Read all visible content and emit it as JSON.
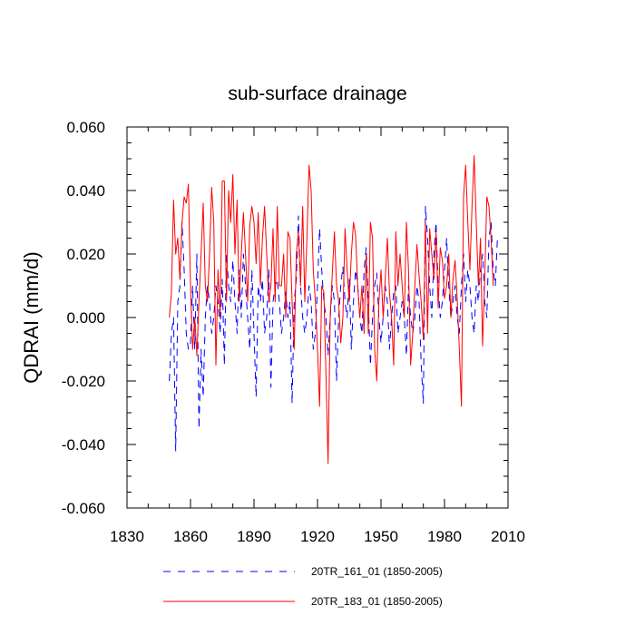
{
  "chart_data": {
    "type": "line",
    "title": "sub-surface drainage",
    "xlabel": "",
    "ylabel": "QDRAI  (mm/d)",
    "xlim": [
      1830,
      2010
    ],
    "ylim": [
      -0.06,
      0.06
    ],
    "x_ticks": [
      1830,
      1860,
      1890,
      1920,
      1950,
      1980,
      2010
    ],
    "x_tick_labels": [
      "1830",
      "1860",
      "1890",
      "1920",
      "1950",
      "1980",
      "2010"
    ],
    "y_ticks": [
      -0.06,
      -0.04,
      -0.02,
      0.0,
      0.02,
      0.04,
      0.06
    ],
    "y_tick_labels": [
      "-0.060",
      "-0.040",
      "-0.020",
      "0.000",
      "0.020",
      "0.040",
      "0.060"
    ],
    "legend_position": "bottom",
    "grid": false,
    "series": [
      {
        "name": "20TR_161_01 (1850-2005)",
        "color": "#0000ff",
        "dash": "dashed",
        "x_start": 1850,
        "values": [
          -0.02,
          -0.005,
          0.0,
          -0.042,
          0.005,
          0.01,
          0.03,
          0.015,
          -0.005,
          -0.01,
          -0.008,
          0.01,
          -0.01,
          0.02,
          -0.035,
          -0.01,
          -0.025,
          0.0,
          0.01,
          0.005,
          -0.005,
          0.0,
          0.01,
          0.005,
          -0.005,
          0.012,
          -0.015,
          0.02,
          0.01,
          0.005,
          0.018,
          0.005,
          -0.005,
          0.015,
          0.0,
          0.02,
          0.01,
          0.0,
          -0.01,
          0.015,
          -0.005,
          -0.025,
          0.01,
          0.005,
          0.012,
          -0.005,
          0.0,
          0.015,
          -0.022,
          0.005,
          0.01,
          0.012,
          0.005,
          -0.005,
          0.0,
          0.008,
          0.0,
          0.005,
          -0.027,
          0.005,
          0.012,
          0.032,
          0.01,
          0.0,
          -0.005,
          0.0,
          0.01,
          0.005,
          -0.01,
          -0.005,
          0.01,
          0.028,
          0.015,
          0.005,
          0.0,
          -0.012,
          0.0,
          0.01,
          0.005,
          -0.02,
          0.0,
          0.01,
          0.016,
          0.005,
          0.0,
          0.012,
          -0.01,
          0.005,
          0.015,
          0.01,
          0.0,
          -0.005,
          0.015,
          0.022,
          0.005,
          -0.015,
          0.0,
          0.01,
          0.014,
          0.0,
          -0.008,
          0.0,
          0.01,
          0.005,
          -0.01,
          0.0,
          0.008,
          0.01,
          -0.005,
          0.0,
          0.005,
          0.0,
          -0.012,
          0.01,
          0.0,
          -0.005,
          0.0,
          0.01,
          0.005,
          -0.015,
          -0.027,
          0.035,
          0.025,
          0.01,
          0.0,
          0.02,
          0.03,
          0.01,
          0.0,
          0.005,
          0.015,
          0.025,
          0.01,
          0.0,
          0.005,
          0.01,
          0.0,
          -0.005,
          0.01,
          0.02,
          0.005,
          0.015,
          0.01,
          0.0,
          -0.005,
          0.01,
          0.005,
          0.015,
          0.02,
          0.005,
          0.0,
          0.025,
          0.03,
          0.015,
          0.01,
          0.025
        ]
      },
      {
        "name": "20TR_183_01 (1850-2005)",
        "color": "#ff0000",
        "dash": "solid",
        "x_start": 1850,
        "values": [
          0.0,
          0.008,
          0.037,
          0.02,
          0.025,
          0.012,
          0.03,
          0.038,
          0.036,
          0.042,
          0.01,
          -0.01,
          0.0,
          -0.012,
          0.005,
          0.02,
          0.036,
          0.01,
          0.005,
          0.02,
          0.041,
          0.03,
          -0.015,
          0.015,
          0.0,
          0.043,
          0.043,
          0.005,
          0.04,
          0.03,
          0.045,
          0.02,
          0.037,
          0.005,
          0.02,
          0.033,
          0.02,
          0.005,
          0.029,
          0.035,
          0.03,
          0.017,
          0.033,
          0.01,
          0.025,
          0.035,
          0.02,
          0.005,
          0.01,
          0.028,
          0.005,
          0.035,
          0.01,
          0.01,
          0.02,
          0.0,
          0.027,
          0.025,
          0.005,
          -0.01,
          0.02,
          0.027,
          0.01,
          0.035,
          0.005,
          0.025,
          0.048,
          0.04,
          0.015,
          0.005,
          -0.01,
          -0.028,
          0.01,
          0.008,
          -0.018,
          -0.046,
          0.0,
          0.014,
          0.027,
          0.01,
          0.005,
          -0.008,
          0.0,
          0.028,
          0.015,
          0.005,
          0.02,
          0.03,
          0.026,
          0.01,
          0.0,
          0.01,
          -0.005,
          0.02,
          -0.005,
          0.03,
          0.025,
          -0.01,
          -0.02,
          0.005,
          0.015,
          0.0,
          0.012,
          0.025,
          0.008,
          0.0,
          -0.015,
          0.027,
          0.01,
          0.02,
          0.01,
          0.0,
          0.03,
          0.015,
          -0.015,
          -0.005,
          0.01,
          0.023,
          0.013,
          0.005,
          -0.007,
          0.03,
          -0.005,
          0.028,
          0.02,
          0.012,
          0.027,
          0.003,
          0.022,
          0.018,
          0.006,
          0.01,
          0.02,
          0.0,
          0.012,
          0.018,
          0.006,
          -0.01,
          -0.028,
          0.038,
          0.048,
          0.03,
          0.015,
          0.035,
          0.051,
          0.03,
          0.01,
          0.025,
          -0.009,
          0.012,
          0.038,
          0.035,
          0.025,
          0.01
        ]
      }
    ]
  }
}
